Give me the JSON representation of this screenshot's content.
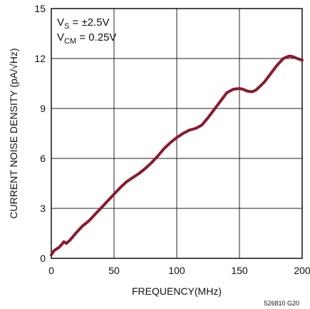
{
  "chart_data": {
    "type": "line",
    "xlabel": "FREQUENCY(MHz)",
    "ylabel": "CURRENT NOISE DENSITY (pA/√Hz)",
    "xlim": [
      0,
      200
    ],
    "ylim": [
      0,
      15
    ],
    "xticks": [
      0,
      50,
      100,
      150,
      200
    ],
    "yticks": [
      0,
      3,
      6,
      9,
      12,
      15
    ],
    "grid": true,
    "annotations": [
      {
        "main": "V",
        "sub": "S",
        "rest": " = ±2.5V"
      },
      {
        "main": "V",
        "sub": "CM",
        "rest": " = 0.25V"
      }
    ],
    "figure_id": "526810 G20",
    "series": [
      {
        "color": "#8b1a2e",
        "x": [
          0,
          2,
          4,
          6,
          8,
          10,
          12,
          15,
          20,
          25,
          30,
          35,
          40,
          45,
          50,
          55,
          60,
          65,
          70,
          75,
          80,
          85,
          90,
          95,
          100,
          105,
          110,
          115,
          120,
          125,
          130,
          135,
          140,
          145,
          150,
          153,
          156,
          160,
          163,
          166,
          170,
          175,
          180,
          185,
          188,
          190,
          193,
          196,
          200
        ],
        "y": [
          0.2,
          0.45,
          0.55,
          0.65,
          0.8,
          1.0,
          0.9,
          1.1,
          1.55,
          1.95,
          2.25,
          2.65,
          3.05,
          3.45,
          3.85,
          4.25,
          4.6,
          4.85,
          5.1,
          5.4,
          5.75,
          6.15,
          6.6,
          6.95,
          7.25,
          7.5,
          7.7,
          7.8,
          8.0,
          8.45,
          8.95,
          9.45,
          9.95,
          10.15,
          10.2,
          10.15,
          10.05,
          10.0,
          10.1,
          10.3,
          10.6,
          11.1,
          11.6,
          12.0,
          12.1,
          12.15,
          12.1,
          12.0,
          11.9
        ]
      }
    ]
  }
}
